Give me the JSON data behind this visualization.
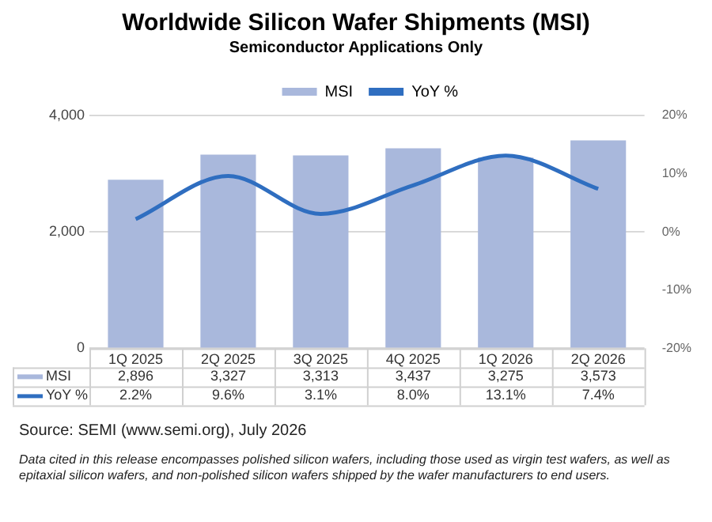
{
  "chart_data": {
    "type": "bar",
    "title": "Worldwide Silicon Wafer Shipments (MSI)",
    "subtitle": "Semiconductor Applications Only",
    "categories": [
      "1Q 2025",
      "2Q 2025",
      "3Q 2025",
      "4Q 2025",
      "1Q 2026",
      "2Q 2026"
    ],
    "series": [
      {
        "name": "MSI",
        "color": "#a9b8dc",
        "values": [
          2896,
          3327,
          3313,
          3437,
          3275,
          3573
        ],
        "value_labels": [
          "2,896",
          "3,327",
          "3,313",
          "3,437",
          "3,275",
          "3,573"
        ]
      },
      {
        "name": "YoY %",
        "type": "line",
        "axis": "y2",
        "color": "#2f6ec0",
        "values": [
          2.2,
          9.6,
          3.1,
          8.0,
          13.1,
          7.4
        ],
        "value_labels": [
          "2.2%",
          "9.6%",
          "3.1%",
          "8.0%",
          "13.1%",
          "7.4%"
        ]
      }
    ],
    "ylim": [
      0,
      4000
    ],
    "yticks": [
      0,
      {
        "value": 2000,
        "label": "2,000"
      },
      {
        "value": 4000,
        "label": "4,000"
      }
    ],
    "y2lim": [
      -20,
      20
    ],
    "y2ticks": [
      {
        "value": -20,
        "label": "-20%"
      },
      {
        "value": -10,
        "label": "-10%"
      },
      {
        "value": 0,
        "label": "0%"
      },
      {
        "value": 10,
        "label": "10%"
      },
      {
        "value": 20,
        "label": "20%"
      }
    ],
    "grid": "y",
    "legend": "top",
    "marker": "none",
    "annotations": [
      "Source: SEMI (www.semi.org), July 2026",
      "Data cited in this release encompasses polished silicon wafers, including those used as virgin test wafers, as well as epitaxial silicon wafers, and non-polished silicon wafers shipped by the wafer manufacturers to end users."
    ]
  }
}
